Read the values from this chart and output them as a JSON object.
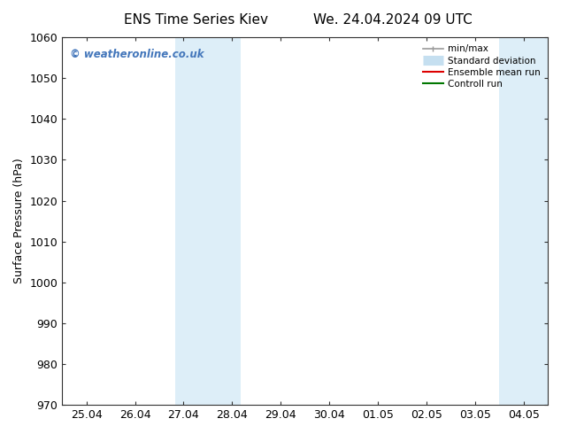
{
  "title_left": "ENS Time Series Kiev",
  "title_right": "We. 24.04.2024 09 UTC",
  "ylabel": "Surface Pressure (hPa)",
  "ylim": [
    970,
    1060
  ],
  "yticks": [
    970,
    980,
    990,
    1000,
    1010,
    1020,
    1030,
    1040,
    1050,
    1060
  ],
  "xtick_labels": [
    "25.04",
    "26.04",
    "27.04",
    "28.04",
    "29.04",
    "30.04",
    "01.05",
    "02.05",
    "03.05",
    "04.05"
  ],
  "xtick_positions": [
    0,
    1,
    2,
    3,
    4,
    5,
    6,
    7,
    8,
    9
  ],
  "xlim": [
    -0.5,
    9.5
  ],
  "shaded_regions": [
    {
      "xmin": 1.83,
      "xmax": 3.17,
      "color": "#ddeef8"
    },
    {
      "xmin": 8.5,
      "xmax": 9.5,
      "color": "#ddeef8"
    }
  ],
  "watermark": "© weatheronline.co.uk",
  "watermark_color": "#4477bb",
  "background_color": "#ffffff",
  "legend_items": [
    {
      "label": "min/max",
      "color": "#999999",
      "lw": 1.2
    },
    {
      "label": "Standard deviation",
      "color": "#c5dff0",
      "lw": 8
    },
    {
      "label": "Ensemble mean run",
      "color": "#dd0000",
      "lw": 1.5
    },
    {
      "label": "Controll run",
      "color": "#007700",
      "lw": 1.5
    }
  ],
  "spine_color": "#333333",
  "tick_label_fontsize": 9,
  "axis_label_fontsize": 9,
  "title_fontsize": 11
}
